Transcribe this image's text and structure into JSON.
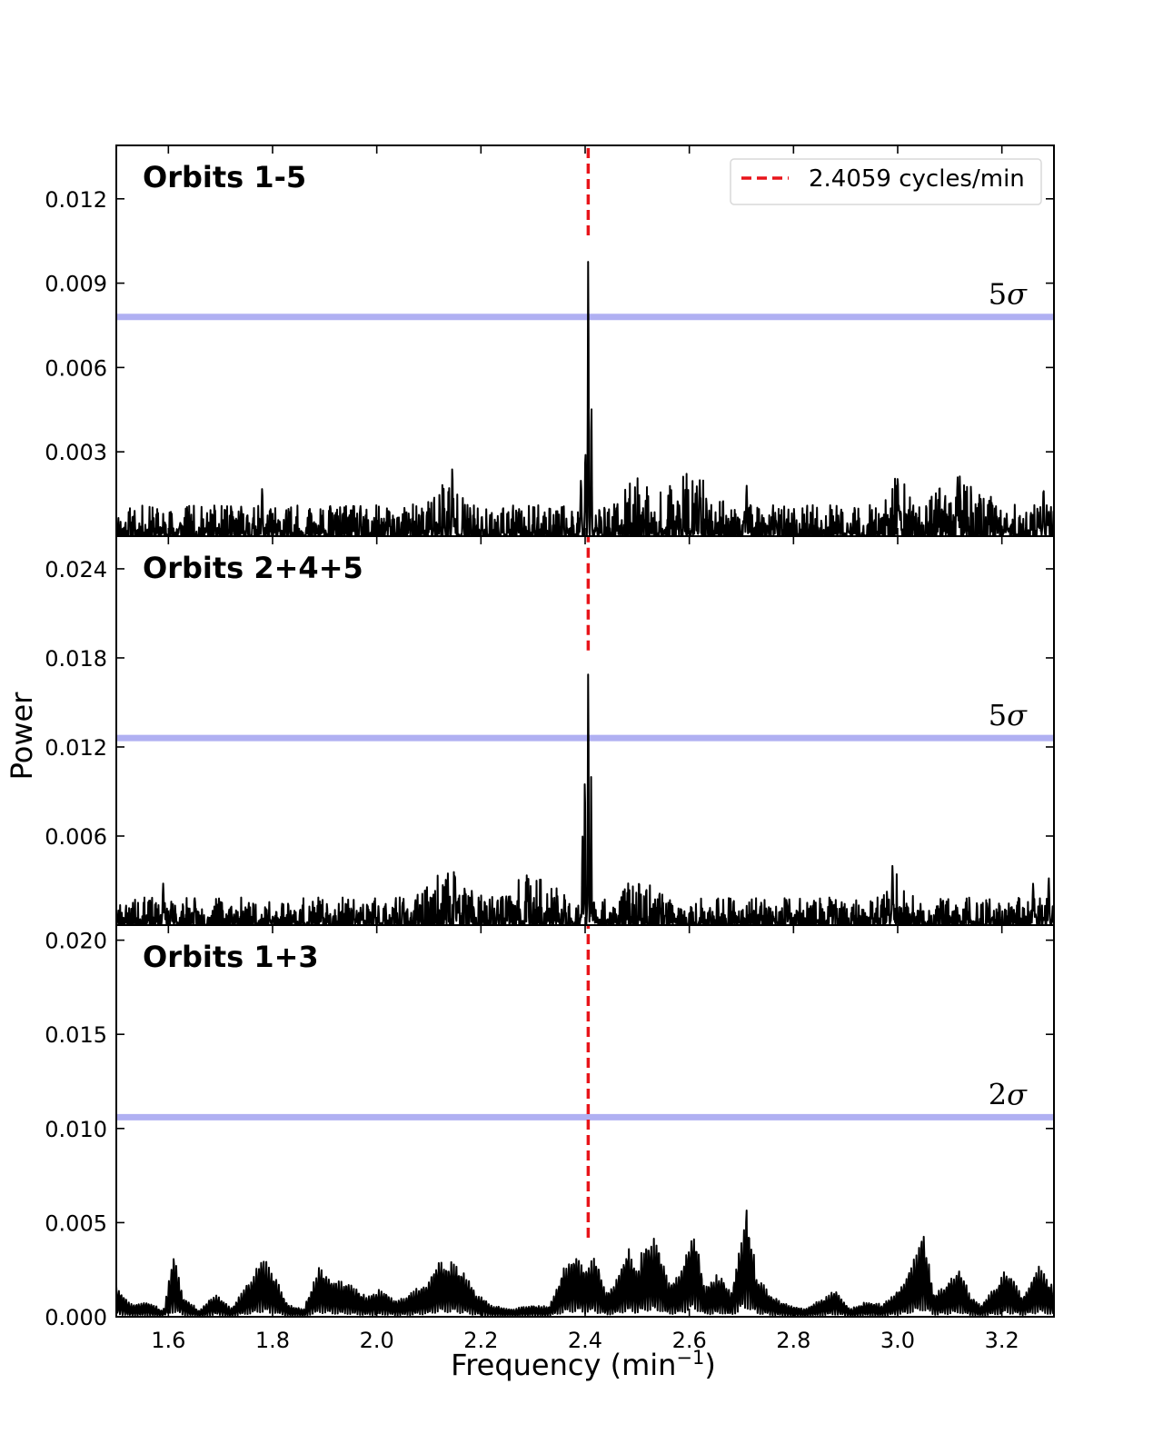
{
  "chart_data": {
    "type": "line",
    "xlabel": "Frequency (min",
    "xlabel_sup": "−1",
    "xlabel_close": ")",
    "ylabel": "Power",
    "xlim": [
      1.5,
      3.3
    ],
    "x_ticks": [
      "1.6",
      "1.8",
      "2.0",
      "2.2",
      "2.4",
      "2.6",
      "2.8",
      "3.0",
      "3.2"
    ],
    "x_tick_values": [
      1.6,
      1.8,
      2.0,
      2.2,
      2.4,
      2.6,
      2.8,
      3.0,
      3.2
    ],
    "legend": {
      "label": "2.4059 cycles/min",
      "placement": "top-right",
      "color": "#e8141a",
      "style": "dashed"
    },
    "marker_frequency": 2.4059,
    "threshold_color": "#b0b0f2",
    "line_color": "#000000",
    "panels": [
      {
        "title": "Orbits 1-5",
        "ylim": [
          0,
          0.0139
        ],
        "y_ticks": [
          "0.003",
          "0.006",
          "0.009",
          "0.012"
        ],
        "y_tick_values": [
          0.003,
          0.006,
          0.009,
          0.012
        ],
        "threshold": 0.0078,
        "threshold_label": "5σ",
        "threshold_num": "5",
        "marker_ymin": 0.0107,
        "noise_scale": 0.00065,
        "noise_bumps": [
          [
            2.13,
            0.0009,
            0.03
          ],
          [
            2.5,
            0.0006,
            0.03
          ],
          [
            2.6,
            0.0007,
            0.05
          ],
          [
            3.0,
            0.0007,
            0.02
          ],
          [
            3.12,
            0.0007,
            0.05
          ]
        ],
        "peaks": [
          [
            2.4059,
            0.01,
            0.0011
          ],
          [
            2.4005,
            0.0031,
            0.0012
          ],
          [
            2.412,
            0.0048,
            0.0011
          ],
          [
            2.392,
            0.002,
            0.0015
          ],
          [
            2.145,
            0.0025,
            0.0012
          ],
          [
            2.71,
            0.0018,
            0.0015
          ],
          [
            2.62,
            0.002,
            0.0015
          ],
          [
            3.0,
            0.0021,
            0.0015
          ],
          [
            3.115,
            0.0021,
            0.0015
          ],
          [
            1.78,
            0.0017,
            0.0015
          ],
          [
            3.28,
            0.0017,
            0.0015
          ]
        ],
        "seed": 11
      },
      {
        "title": "Orbits 2+4+5",
        "ylim": [
          0,
          0.0262
        ],
        "y_ticks": [
          "0.006",
          "0.012",
          "0.018",
          "0.024"
        ],
        "y_tick_values": [
          0.006,
          0.012,
          0.018,
          0.024
        ],
        "threshold": 0.0126,
        "threshold_label": "5σ",
        "threshold_num": "5",
        "marker_ymin": 0.0185,
        "noise_scale": 0.0011,
        "noise_bumps": [
          [
            2.14,
            0.0014,
            0.04
          ],
          [
            2.3,
            0.001,
            0.05
          ],
          [
            2.5,
            0.0008,
            0.04
          ],
          [
            3.0,
            0.001,
            0.02
          ]
        ],
        "peaks": [
          [
            2.4059,
            0.0173,
            0.0011
          ],
          [
            2.3995,
            0.0105,
            0.001
          ],
          [
            2.4115,
            0.01,
            0.001
          ],
          [
            2.395,
            0.006,
            0.0012
          ],
          [
            2.15,
            0.0035,
            0.0015
          ],
          [
            2.29,
            0.0033,
            0.0015
          ],
          [
            2.99,
            0.004,
            0.0015
          ],
          [
            1.59,
            0.0028,
            0.0015
          ],
          [
            3.26,
            0.0028,
            0.0015
          ],
          [
            3.29,
            0.0032,
            0.0015
          ]
        ],
        "seed": 23
      },
      {
        "title": "Orbits 1+3",
        "ylim": [
          0,
          0.0208
        ],
        "y_ticks": [
          "0.000",
          "0.005",
          "0.010",
          "0.015",
          "0.020"
        ],
        "y_tick_values": [
          0.0,
          0.005,
          0.01,
          0.015,
          0.02
        ],
        "threshold": 0.0106,
        "threshold_label": "2σ",
        "threshold_num": "2",
        "marker_ymin": 0.0042,
        "envelope": [
          [
            1.5,
            0.0017
          ],
          [
            1.51,
            0.0012
          ],
          [
            1.53,
            0.0006
          ],
          [
            1.56,
            0.0008
          ],
          [
            1.59,
            0.0003
          ],
          [
            1.61,
            0.003
          ],
          [
            1.63,
            0.001
          ],
          [
            1.66,
            0.0003
          ],
          [
            1.69,
            0.0012
          ],
          [
            1.72,
            0.0004
          ],
          [
            1.76,
            0.002
          ],
          [
            1.78,
            0.003
          ],
          [
            1.8,
            0.0022
          ],
          [
            1.83,
            0.0006
          ],
          [
            1.86,
            0.0004
          ],
          [
            1.89,
            0.0025
          ],
          [
            1.92,
            0.0018
          ],
          [
            1.95,
            0.0017
          ],
          [
            1.98,
            0.001
          ],
          [
            2.01,
            0.0014
          ],
          [
            2.04,
            0.0008
          ],
          [
            2.07,
            0.0013
          ],
          [
            2.1,
            0.0018
          ],
          [
            2.12,
            0.0028
          ],
          [
            2.15,
            0.0027
          ],
          [
            2.17,
            0.0022
          ],
          [
            2.19,
            0.0012
          ],
          [
            2.22,
            0.0006
          ],
          [
            2.26,
            0.0004
          ],
          [
            2.3,
            0.0006
          ],
          [
            2.33,
            0.0005
          ],
          [
            2.36,
            0.0025
          ],
          [
            2.38,
            0.0034
          ],
          [
            2.4,
            0.0024
          ],
          [
            2.42,
            0.003
          ],
          [
            2.44,
            0.0012
          ],
          [
            2.46,
            0.0018
          ],
          [
            2.48,
            0.0035
          ],
          [
            2.5,
            0.0025
          ],
          [
            2.52,
            0.004
          ],
          [
            2.54,
            0.0038
          ],
          [
            2.56,
            0.0018
          ],
          [
            2.58,
            0.0022
          ],
          [
            2.61,
            0.0045
          ],
          [
            2.63,
            0.0015
          ],
          [
            2.66,
            0.0022
          ],
          [
            2.68,
            0.0012
          ],
          [
            2.71,
            0.0055
          ],
          [
            2.73,
            0.002
          ],
          [
            2.76,
            0.001
          ],
          [
            2.79,
            0.0006
          ],
          [
            2.82,
            0.0004
          ],
          [
            2.85,
            0.0008
          ],
          [
            2.88,
            0.0014
          ],
          [
            2.91,
            0.0004
          ],
          [
            2.94,
            0.0008
          ],
          [
            2.97,
            0.0006
          ],
          [
            3.0,
            0.0014
          ],
          [
            3.02,
            0.0022
          ],
          [
            3.05,
            0.0042
          ],
          [
            3.07,
            0.0012
          ],
          [
            3.09,
            0.0016
          ],
          [
            3.12,
            0.0024
          ],
          [
            3.14,
            0.001
          ],
          [
            3.16,
            0.0006
          ],
          [
            3.19,
            0.0016
          ],
          [
            3.21,
            0.0024
          ],
          [
            3.24,
            0.001
          ],
          [
            3.27,
            0.0026
          ],
          [
            3.3,
            0.0014
          ]
        ],
        "seed": 37
      }
    ]
  }
}
